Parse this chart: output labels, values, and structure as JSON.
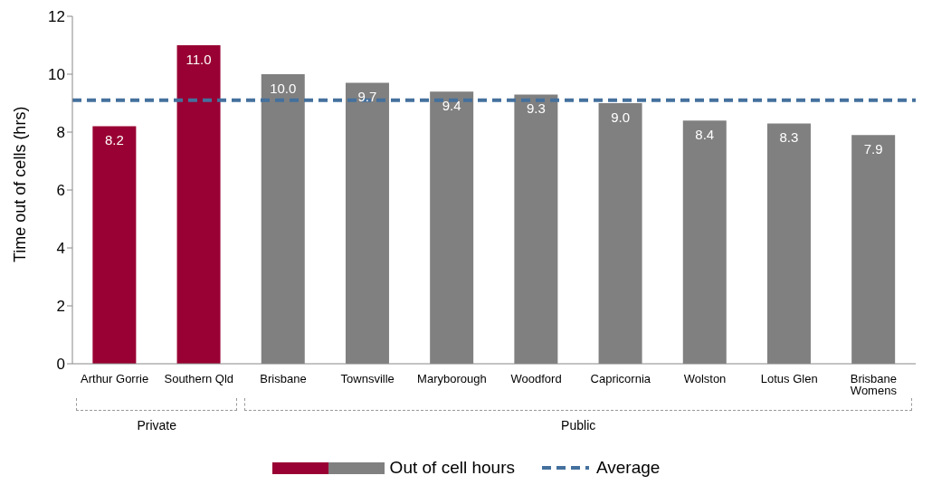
{
  "chart_data": {
    "type": "bar",
    "ylabel": "Time out of cells (hrs)",
    "categories": [
      "Arthur Gorrie",
      "Southern Qld",
      "Brisbane",
      "Townsville",
      "Maryborough",
      "Woodford",
      "Capricornia",
      "Wolston",
      "Lotus Glen",
      "Brisbane Womens"
    ],
    "series": [
      {
        "name": "Out of cell hours",
        "values": [
          8.2,
          11.0,
          10.0,
          9.7,
          9.4,
          9.3,
          9.0,
          8.4,
          8.3,
          7.9
        ],
        "value_labels": [
          "8.2",
          "11.0",
          "10.0",
          "9.7",
          "9.4",
          "9.3",
          "9.0",
          "8.4",
          "8.3",
          "7.9"
        ],
        "colors": [
          "#990033",
          "#990033",
          "#808080",
          "#808080",
          "#808080",
          "#808080",
          "#808080",
          "#808080",
          "#808080",
          "#808080"
        ]
      }
    ],
    "ylim": [
      0,
      12
    ],
    "yticks": [
      0,
      2,
      4,
      6,
      8,
      10,
      12
    ],
    "ref_lines": [
      {
        "axis": "y",
        "value": 9.1,
        "label": "Average",
        "color": "#44709d",
        "line_style": "dashed"
      }
    ],
    "annotations": [
      "Private",
      "Public"
    ],
    "legend": "bottom",
    "grid": false
  }
}
